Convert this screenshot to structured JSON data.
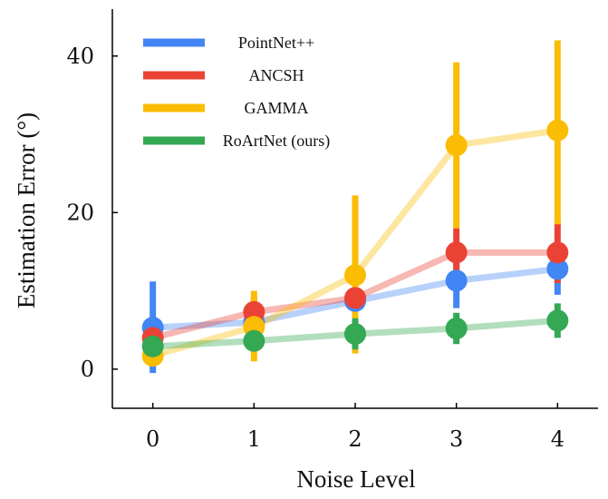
{
  "chart_data": {
    "type": "line",
    "xlabel": "Noise Level",
    "ylabel": "Estimation Error (°)",
    "x": [
      0,
      1,
      2,
      3,
      4
    ],
    "xticks": [
      "0",
      "1",
      "2",
      "3",
      "4"
    ],
    "yticks": [
      "0",
      "20",
      "40"
    ],
    "xlim": [
      -0.4,
      4.4
    ],
    "ylim": [
      -5,
      46
    ],
    "legend_position": "top-left",
    "series": [
      {
        "name": "PointNet++",
        "color": "#4285F4",
        "values": [
          5.3,
          6.0,
          8.7,
          11.3,
          12.8
        ],
        "err_low": [
          -0.5,
          4.5,
          7.5,
          7.8,
          9.5
        ],
        "err_high": [
          11.2,
          7.5,
          10.0,
          14.8,
          16.0
        ]
      },
      {
        "name": "ANCSH",
        "color": "#EA4335",
        "values": [
          4.0,
          7.3,
          9.1,
          14.9,
          14.9
        ],
        "err_low": [
          2.2,
          5.5,
          7.0,
          10.5,
          11.0
        ],
        "err_high": [
          6.0,
          9.2,
          11.0,
          18.0,
          18.8
        ]
      },
      {
        "name": "GAMMA",
        "color": "#FBBC04",
        "values": [
          1.7,
          5.4,
          12.0,
          28.6,
          30.5
        ],
        "err_low": [
          0.8,
          1.0,
          2.0,
          18.0,
          18.5
        ],
        "err_high": [
          2.5,
          10.0,
          22.2,
          39.2,
          42.0
        ]
      },
      {
        "name": "RoArtNet (ours)",
        "color": "#34A853",
        "values": [
          2.9,
          3.6,
          4.5,
          5.2,
          6.2
        ],
        "err_low": [
          2.0,
          2.5,
          2.5,
          3.2,
          4.0
        ],
        "err_high": [
          3.8,
          4.6,
          6.5,
          7.2,
          8.4
        ]
      }
    ]
  }
}
